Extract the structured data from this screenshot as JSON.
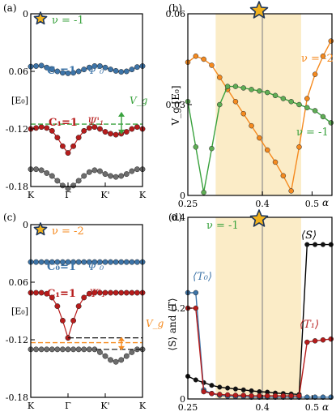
{
  "colors": {
    "blue": "#3d74a8",
    "red": "#b71c1c",
    "gray": "#6d6d6d",
    "green": "#3aa23e",
    "orange": "#f58a1f",
    "band": "#fbecc7",
    "star_fill": "#f2b21c",
    "star_stroke": "#1e3557"
  },
  "chart_data": [
    {
      "panel": "(a)",
      "type": "line",
      "annotation_top": "ν = -1",
      "ylim": [
        -0.18,
        0
      ],
      "yticks": [
        "0",
        "0.06",
        "[E₀]",
        "-0.12",
        "-0.18"
      ],
      "xticks": [
        "K",
        "Γ",
        "K'",
        "K"
      ],
      "band_labels": [
        {
          "chern": "C₀=1",
          "psi": "Ψ'₀"
        },
        {
          "chern": "C₁=1",
          "psi": "Ψ'₁"
        }
      ],
      "gap_label": "V_g",
      "gap_line_y": -0.115,
      "series": [
        {
          "values": [
            -0.055,
            -0.0545,
            -0.054,
            -0.056,
            -0.058,
            -0.06,
            -0.0615,
            -0.062,
            -0.0615,
            -0.06,
            -0.058,
            -0.056,
            -0.0545,
            -0.0545,
            -0.056,
            -0.058,
            -0.0595,
            -0.0605,
            -0.06,
            -0.058,
            -0.0555,
            -0.0545
          ]
        },
        {
          "values": [
            -0.12,
            -0.119,
            -0.118,
            -0.119,
            -0.122,
            -0.129,
            -0.138,
            -0.145,
            -0.138,
            -0.129,
            -0.122,
            -0.119,
            -0.118,
            -0.12,
            -0.123,
            -0.125,
            -0.126,
            -0.125,
            -0.123,
            -0.12,
            -0.118,
            -0.12
          ]
        },
        {
          "values": [
            -0.162,
            -0.162,
            -0.163,
            -0.166,
            -0.169,
            -0.174,
            -0.179,
            -0.182,
            -0.179,
            -0.174,
            -0.169,
            -0.165,
            -0.163,
            -0.164,
            -0.167,
            -0.169,
            -0.17,
            -0.169,
            -0.167,
            -0.164,
            -0.162,
            -0.162
          ]
        }
      ]
    },
    {
      "panel": "(b)",
      "type": "line",
      "ylabel": "V_g [E₀]",
      "xlabel": "α",
      "xlim": [
        0.25,
        0.54
      ],
      "ylim": [
        0,
        0.06
      ],
      "xticks": [
        "0.25",
        "0.4",
        "0.5"
      ],
      "yticks": [
        "0",
        "0.03",
        "0.06"
      ],
      "shaded_range": [
        0.306,
        0.478
      ],
      "vline": 0.4,
      "series": [
        {
          "name": "ν = -2",
          "x": [
            0.25,
            0.266,
            0.282,
            0.298,
            0.314,
            0.33,
            0.346,
            0.362,
            0.378,
            0.394,
            0.41,
            0.426,
            0.442,
            0.458,
            0.474,
            0.49,
            0.506,
            0.522,
            0.538
          ],
          "values": [
            0.044,
            0.046,
            0.045,
            0.043,
            0.039,
            0.035,
            0.031,
            0.027,
            0.023,
            0.019,
            0.015,
            0.011,
            0.0065,
            0.0015,
            0.016,
            0.032,
            0.04,
            0.046,
            0.051
          ]
        },
        {
          "name": "ν = -1",
          "x": [
            0.25,
            0.266,
            0.282,
            0.298,
            0.314,
            0.33,
            0.346,
            0.362,
            0.378,
            0.394,
            0.41,
            0.426,
            0.442,
            0.458,
            0.474,
            0.49,
            0.506,
            0.522,
            0.538
          ],
          "values": [
            0.031,
            0.016,
            0.001,
            0.0155,
            0.03,
            0.036,
            0.036,
            0.0355,
            0.035,
            0.0345,
            0.034,
            0.033,
            0.032,
            0.031,
            0.03,
            0.029,
            0.028,
            0.026,
            0.024
          ]
        }
      ]
    },
    {
      "panel": "(c)",
      "type": "line",
      "annotation_top": "ν = -2",
      "ylim": [
        -0.18,
        0
      ],
      "yticks": [
        "0",
        "0.06",
        "[E₀]",
        "-0.12",
        "-0.18"
      ],
      "xticks": [
        "K",
        "Γ",
        "K'",
        "K"
      ],
      "band_labels": [
        {
          "chern": "C₀=1",
          "psi": "Ψ'₀"
        },
        {
          "chern": "C₁=1",
          "psi": "Ψ'₁"
        }
      ],
      "gap_label": "V_g",
      "gap_line_y": -0.123,
      "series": [
        {
          "values": [
            -0.039,
            -0.039,
            -0.039,
            -0.039,
            -0.039,
            -0.039,
            -0.039,
            -0.039,
            -0.039,
            -0.039,
            -0.039,
            -0.039,
            -0.039,
            -0.039,
            -0.039,
            -0.039,
            -0.039,
            -0.039,
            -0.039,
            -0.039,
            -0.039,
            -0.039
          ]
        },
        {
          "values": [
            -0.071,
            -0.071,
            -0.071,
            -0.072,
            -0.076,
            -0.085,
            -0.1,
            -0.118,
            -0.1,
            -0.085,
            -0.076,
            -0.072,
            -0.071,
            -0.071,
            -0.071,
            -0.071,
            -0.071,
            -0.071,
            -0.071,
            -0.071,
            -0.071,
            -0.071
          ]
        },
        {
          "values": [
            -0.13,
            -0.13,
            -0.13,
            -0.13,
            -0.13,
            -0.13,
            -0.13,
            -0.13,
            -0.13,
            -0.13,
            -0.13,
            -0.13,
            -0.13,
            -0.133,
            -0.137,
            -0.141,
            -0.143,
            -0.141,
            -0.137,
            -0.133,
            -0.13,
            -0.13
          ]
        }
      ]
    },
    {
      "panel": "(d)",
      "type": "line",
      "annotation_top": "ν = -1",
      "ylabel": "⟨S⟩ and ⟨T⟩",
      "xlabel": "α",
      "xlim": [
        0.25,
        0.54
      ],
      "ylim": [
        0,
        0.4
      ],
      "xticks": [
        "0.25",
        "0.4",
        "0.5"
      ],
      "yticks": [
        "0",
        "0.2",
        "0.4"
      ],
      "shaded_range": [
        0.306,
        0.478
      ],
      "vline": 0.4,
      "series": [
        {
          "name": "⟨S⟩",
          "x": [
            0.25,
            0.266,
            0.282,
            0.298,
            0.314,
            0.33,
            0.346,
            0.362,
            0.378,
            0.394,
            0.41,
            0.426,
            0.442,
            0.458,
            0.474,
            0.49,
            0.506,
            0.522,
            0.538
          ],
          "values": [
            0.05,
            0.042,
            0.036,
            0.03,
            0.026,
            0.024,
            0.022,
            0.02,
            0.018,
            0.016,
            0.015,
            0.013,
            0.012,
            0.011,
            0.01,
            0.34,
            0.34,
            0.34,
            0.34
          ]
        },
        {
          "name": "⟨T₀⟩",
          "x": [
            0.25,
            0.266,
            0.282,
            0.298,
            0.314,
            0.33,
            0.346,
            0.362,
            0.378,
            0.394,
            0.41,
            0.426,
            0.442,
            0.458,
            0.474,
            0.49,
            0.506,
            0.522,
            0.538
          ],
          "values": [
            0.234,
            0.234,
            0.02,
            0.012,
            0.008,
            0.006,
            0.005,
            0.005,
            0.004,
            0.004,
            0.004,
            0.004,
            0.004,
            0.004,
            0.004,
            0.004,
            0.004,
            0.004,
            0.004
          ]
        },
        {
          "name": "⟨T₁⟩",
          "x": [
            0.25,
            0.266,
            0.282,
            0.298,
            0.314,
            0.33,
            0.346,
            0.362,
            0.378,
            0.394,
            0.41,
            0.426,
            0.442,
            0.458,
            0.474,
            0.49,
            0.506,
            0.522,
            0.538
          ],
          "values": [
            0.2,
            0.2,
            0.016,
            0.012,
            0.01,
            0.009,
            0.008,
            0.008,
            0.007,
            0.007,
            0.007,
            0.007,
            0.007,
            0.007,
            0.007,
            0.125,
            0.128,
            0.13,
            0.132
          ]
        }
      ]
    }
  ]
}
